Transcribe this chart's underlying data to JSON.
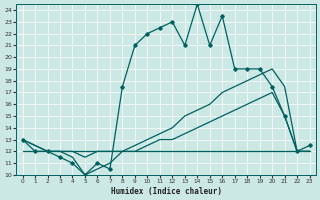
{
  "xlabel": "Humidex (Indice chaleur)",
  "bg_color": "#cce8e4",
  "grid_color": "#ffffff",
  "line_color": "#006060",
  "xlim": [
    -0.5,
    23.5
  ],
  "ylim": [
    10,
    24.5
  ],
  "yticks": [
    10,
    11,
    12,
    13,
    14,
    15,
    16,
    17,
    18,
    19,
    20,
    21,
    22,
    23,
    24
  ],
  "xticks": [
    0,
    1,
    2,
    3,
    4,
    5,
    6,
    7,
    8,
    9,
    10,
    11,
    12,
    13,
    14,
    15,
    16,
    17,
    18,
    19,
    20,
    21,
    22,
    23
  ],
  "line1_x": [
    0,
    1,
    2,
    3,
    4,
    5,
    6,
    7,
    8,
    9,
    10,
    11,
    12,
    13,
    14,
    15,
    16,
    17,
    18,
    19,
    20,
    21,
    22,
    23
  ],
  "line1_y": [
    13,
    12,
    12,
    11.5,
    11,
    10,
    11,
    10.5,
    17.5,
    21,
    22,
    22.5,
    23,
    21,
    24.5,
    21,
    23.5,
    19,
    19,
    19,
    17.5,
    15,
    12,
    12.5
  ],
  "line2_x": [
    0,
    1,
    2,
    3,
    4,
    5,
    6,
    7,
    8,
    9,
    10,
    11,
    12,
    13,
    14,
    15,
    16,
    17,
    18,
    19,
    20,
    21,
    22,
    23
  ],
  "line2_y": [
    13,
    12.5,
    12,
    12,
    11.5,
    10,
    10.5,
    11,
    12,
    12.5,
    13,
    13.5,
    14,
    15,
    15.5,
    16,
    17,
    17.5,
    18,
    18.5,
    19,
    17.5,
    12,
    12
  ],
  "line3_x": [
    0,
    1,
    2,
    3,
    4,
    5,
    6,
    7,
    8,
    9,
    10,
    11,
    12,
    13,
    14,
    15,
    16,
    17,
    18,
    19,
    20,
    21,
    22,
    23
  ],
  "line3_y": [
    13,
    12.5,
    12,
    12,
    12,
    11.5,
    12,
    12,
    12,
    12,
    12.5,
    13,
    13,
    13.5,
    14,
    14.5,
    15,
    15.5,
    16,
    16.5,
    17,
    15,
    12,
    12
  ],
  "line4_x": [
    0,
    21,
    22,
    23
  ],
  "line4_y": [
    12,
    12,
    12,
    12
  ]
}
